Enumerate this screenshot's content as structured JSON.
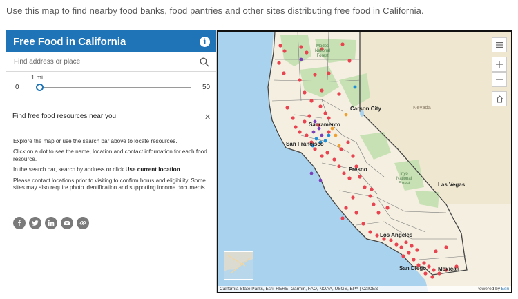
{
  "intro": "Use this map to find nearby food banks, food pantries and other sites distributing free food in California.",
  "panel": {
    "title": "Free Food in California",
    "search_placeholder": "Find address or place",
    "slider": {
      "unit": "1 mi",
      "min": "0",
      "max": "50",
      "value": 1
    },
    "results_title": "Find free food resources near you",
    "paragraphs": {
      "p1": "Explore the map or use the search bar above to locate resources.",
      "p2": "Click on a dot to see the name, location and contact information for each food resource.",
      "p3_prefix": "In the search bar, search by address or click ",
      "p3_bold": "Use current location",
      "p3_suffix": ".",
      "p4": "Please contact locations prior to visiting to confirm hours and eligibility. Some sites may also require photo identification and supporting income documents."
    },
    "share_icons": [
      "facebook-icon",
      "twitter-icon",
      "linkedin-icon",
      "email-icon",
      "link-icon"
    ]
  },
  "map": {
    "labels": {
      "modoc": "Modoc\nNational\nForest",
      "carson_city": "Carson City",
      "nevada": "Nevada",
      "sacramento": "Sacramento",
      "san_francisco": "San Francisco",
      "fresno": "Fresno",
      "inyo": "Inyo\nNational\nForest",
      "las_vegas": "Las Vegas",
      "los_angeles": "Los Angeles",
      "san_diego": "San Diego",
      "mexicali": "Mexicali"
    },
    "attribution": "California State Parks, Esri, HERE, Garmin, FAO, NOAA, USGS, EPA | CalOES",
    "powered_by_prefix": "Powered by ",
    "powered_by_brand": "Esri",
    "controls": [
      "menu-icon",
      "zoom-in-icon",
      "zoom-out-icon",
      "home-icon"
    ],
    "colors": {
      "water": "#a9d2ee",
      "land": "#f4efe1",
      "forest": "#c7e1b4",
      "site": "#e8434e",
      "site_alt_1": "#7a3fb8",
      "site_alt_2": "#1a8ed8",
      "site_alt_3": "#f0a030"
    }
  }
}
